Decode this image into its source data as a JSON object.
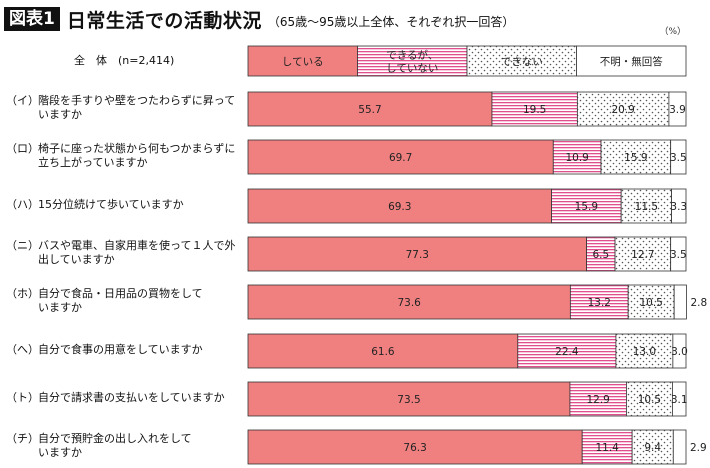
{
  "figure": {
    "label": "図表1",
    "title": "日常生活での活動状況",
    "subtitle": "（65歳〜95歳以上全体、それぞれ択一回答）",
    "unit": "（%）"
  },
  "chart_data": {
    "type": "bar",
    "orientation": "horizontal",
    "stacked": true,
    "xlim": [
      0,
      100
    ],
    "legend_placement": "top-row",
    "series": [
      {
        "name": "している",
        "color": "#f08080",
        "pattern": "solid",
        "values": [
          55.7,
          69.7,
          69.3,
          77.3,
          73.6,
          61.6,
          73.5,
          76.3
        ]
      },
      {
        "name": "できるが、していない",
        "color": "#e0508c",
        "pattern": "horizontal-stripes",
        "values": [
          19.5,
          10.9,
          15.9,
          6.5,
          13.2,
          22.4,
          12.9,
          11.4
        ]
      },
      {
        "name": "できない",
        "color": "#555555",
        "pattern": "dots",
        "values": [
          20.9,
          15.9,
          11.5,
          12.7,
          10.5,
          13.0,
          10.5,
          9.4
        ]
      },
      {
        "name": "不明・無回答",
        "color": "#ffffff",
        "pattern": "none",
        "values": [
          3.9,
          3.5,
          3.3,
          3.5,
          2.8,
          3.0,
          3.1,
          2.9
        ]
      }
    ],
    "value_labels": [
      [
        "55.7",
        "19.5",
        "20.9",
        "3.9"
      ],
      [
        "69.7",
        "10.9",
        "15.9",
        "3.5"
      ],
      [
        "69.3",
        "15.9",
        "11.5",
        "3.3"
      ],
      [
        "77.3",
        "6.5",
        "12.7",
        "3.5"
      ],
      [
        "73.6",
        "13.2",
        "10.5",
        "2.8"
      ],
      [
        "61.6",
        "22.4",
        "13.0",
        "3.0"
      ],
      [
        "73.5",
        "12.9",
        "10.5",
        "3.1"
      ],
      [
        "76.3",
        "11.4",
        "9.4",
        "2.9"
      ]
    ],
    "legend_labels": [
      [
        "している"
      ],
      [
        "できるが、",
        "していない"
      ],
      [
        "できない"
      ],
      [
        "不明・無回答"
      ]
    ],
    "total_row_label": "全　体　(n=2,414)",
    "rows": [
      {
        "prefix": "（イ）",
        "lines": [
          "階段を手すりや壁をつたわらずに昇って",
          "いますか"
        ]
      },
      {
        "prefix": "（ロ）",
        "lines": [
          "椅子に座った状態から何もつかまらずに",
          "立ち上がっていますか"
        ]
      },
      {
        "prefix": "（ハ）",
        "lines": [
          "15分位続けて歩いていますか"
        ]
      },
      {
        "prefix": "（ニ）",
        "lines": [
          "バスや電車、自家用車を使って１人で外",
          "出していますか"
        ]
      },
      {
        "prefix": "（ホ）",
        "lines": [
          "自分で食品・日用品の買物をして",
          "いますか"
        ]
      },
      {
        "prefix": "（へ）",
        "lines": [
          "自分で食事の用意をしていますか"
        ]
      },
      {
        "prefix": "（ト）",
        "lines": [
          "自分で請求書の支払いをしていますか"
        ]
      },
      {
        "prefix": "（チ）",
        "lines": [
          "自分で預貯金の出し入れをして",
          "いますか"
        ]
      }
    ]
  }
}
